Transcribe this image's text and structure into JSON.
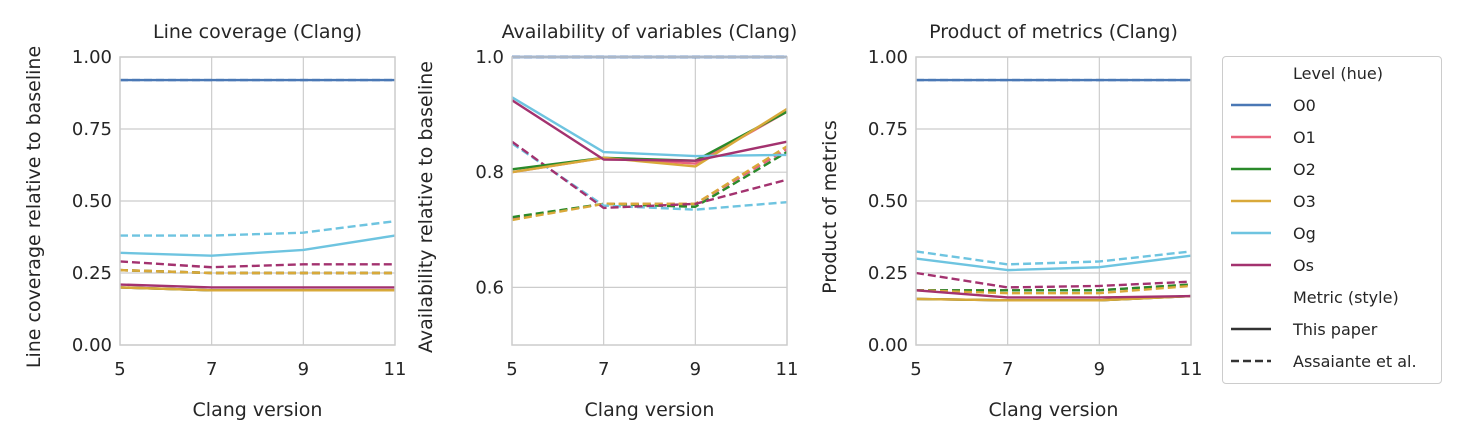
{
  "chart_data": [
    {
      "type": "line",
      "title": "Line coverage (Clang)",
      "xlabel": "Clang version",
      "ylabel": "Line coverage relative to baseline",
      "x": [
        5,
        7,
        9,
        11
      ],
      "xticks": [
        "5",
        "7",
        "9",
        "11"
      ],
      "yticks": [
        "0.00",
        "0.25",
        "0.50",
        "0.75",
        "1.00"
      ],
      "ylim": [
        0,
        1.0
      ],
      "grid": true,
      "series": [
        {
          "name": "O0",
          "style": "This paper",
          "values": [
            0.92,
            0.92,
            0.92,
            0.92
          ]
        },
        {
          "name": "O1",
          "style": "This paper",
          "values": [
            0.2,
            0.19,
            0.19,
            0.19
          ]
        },
        {
          "name": "O2",
          "style": "This paper",
          "values": [
            0.2,
            0.19,
            0.19,
            0.19
          ]
        },
        {
          "name": "O3",
          "style": "This paper",
          "values": [
            0.2,
            0.19,
            0.19,
            0.19
          ]
        },
        {
          "name": "Og",
          "style": "This paper",
          "values": [
            0.32,
            0.31,
            0.33,
            0.38
          ]
        },
        {
          "name": "Os",
          "style": "This paper",
          "values": [
            0.21,
            0.2,
            0.2,
            0.2
          ]
        },
        {
          "name": "O0",
          "style": "Assaiante et al.",
          "values": [
            0.92,
            0.92,
            0.92,
            0.92
          ]
        },
        {
          "name": "O1",
          "style": "Assaiante et al.",
          "values": [
            0.26,
            0.25,
            0.25,
            0.25
          ]
        },
        {
          "name": "O2",
          "style": "Assaiante et al.",
          "values": [
            0.26,
            0.25,
            0.25,
            0.25
          ]
        },
        {
          "name": "O3",
          "style": "Assaiante et al.",
          "values": [
            0.26,
            0.25,
            0.25,
            0.25
          ]
        },
        {
          "name": "Og",
          "style": "Assaiante et al.",
          "values": [
            0.38,
            0.38,
            0.39,
            0.43
          ]
        },
        {
          "name": "Os",
          "style": "Assaiante et al.",
          "values": [
            0.29,
            0.27,
            0.28,
            0.28
          ]
        }
      ]
    },
    {
      "type": "line",
      "title": "Availability of variables (Clang)",
      "xlabel": "Clang version",
      "ylabel": "Availability relative to baseline",
      "x": [
        5,
        7,
        9,
        11
      ],
      "xticks": [
        "5",
        "7",
        "9",
        "11"
      ],
      "yticks": [
        "0.6",
        "0.8",
        "1.0"
      ],
      "ylim": [
        0.5,
        1.0
      ],
      "grid": true,
      "series": [
        {
          "name": "O0",
          "style": "This paper",
          "values": [
            1.0,
            1.0,
            1.0,
            1.0
          ]
        },
        {
          "name": "O1",
          "style": "This paper",
          "values": [
            0.8,
            0.825,
            0.815,
            0.905
          ]
        },
        {
          "name": "O2",
          "style": "This paper",
          "values": [
            0.805,
            0.825,
            0.82,
            0.905
          ]
        },
        {
          "name": "O3",
          "style": "This paper",
          "values": [
            0.8,
            0.825,
            0.81,
            0.91
          ]
        },
        {
          "name": "Og",
          "style": "This paper",
          "values": [
            0.93,
            0.835,
            0.828,
            0.83
          ]
        },
        {
          "name": "Os",
          "style": "This paper",
          "values": [
            0.925,
            0.822,
            0.82,
            0.853
          ]
        },
        {
          "name": "O0",
          "style": "Assaiante et al.",
          "values": [
            1.0,
            1.0,
            1.0,
            1.0
          ]
        },
        {
          "name": "O1",
          "style": "Assaiante et al.",
          "values": [
            0.72,
            0.745,
            0.745,
            0.84
          ]
        },
        {
          "name": "O2",
          "style": "Assaiante et al.",
          "values": [
            0.722,
            0.745,
            0.74,
            0.835
          ]
        },
        {
          "name": "O3",
          "style": "Assaiante et al.",
          "values": [
            0.717,
            0.745,
            0.745,
            0.845
          ]
        },
        {
          "name": "Og",
          "style": "Assaiante et al.",
          "values": [
            0.85,
            0.742,
            0.735,
            0.748
          ]
        },
        {
          "name": "Os",
          "style": "Assaiante et al.",
          "values": [
            0.853,
            0.738,
            0.745,
            0.787
          ]
        }
      ]
    },
    {
      "type": "line",
      "title": "Product of metrics (Clang)",
      "xlabel": "Clang version",
      "ylabel": "Product of metrics",
      "x": [
        5,
        7,
        9,
        11
      ],
      "xticks": [
        "5",
        "7",
        "9",
        "11"
      ],
      "yticks": [
        "0.00",
        "0.25",
        "0.50",
        "0.75",
        "1.00"
      ],
      "ylim": [
        0,
        1.0
      ],
      "grid": true,
      "series": [
        {
          "name": "O0",
          "style": "This paper",
          "values": [
            0.92,
            0.92,
            0.92,
            0.92
          ]
        },
        {
          "name": "O1",
          "style": "This paper",
          "values": [
            0.16,
            0.155,
            0.155,
            0.17
          ]
        },
        {
          "name": "O2",
          "style": "This paper",
          "values": [
            0.16,
            0.155,
            0.155,
            0.17
          ]
        },
        {
          "name": "O3",
          "style": "This paper",
          "values": [
            0.16,
            0.155,
            0.155,
            0.17
          ]
        },
        {
          "name": "Og",
          "style": "This paper",
          "values": [
            0.3,
            0.26,
            0.27,
            0.31
          ]
        },
        {
          "name": "Os",
          "style": "This paper",
          "values": [
            0.19,
            0.165,
            0.165,
            0.17
          ]
        },
        {
          "name": "O0",
          "style": "Assaiante et al.",
          "values": [
            0.92,
            0.92,
            0.92,
            0.92
          ]
        },
        {
          "name": "O1",
          "style": "Assaiante et al.",
          "values": [
            0.19,
            0.19,
            0.19,
            0.21
          ]
        },
        {
          "name": "O2",
          "style": "Assaiante et al.",
          "values": [
            0.19,
            0.19,
            0.19,
            0.21
          ]
        },
        {
          "name": "O3",
          "style": "Assaiante et al.",
          "values": [
            0.19,
            0.18,
            0.18,
            0.205
          ]
        },
        {
          "name": "Og",
          "style": "Assaiante et al.",
          "values": [
            0.325,
            0.28,
            0.29,
            0.325
          ]
        },
        {
          "name": "Os",
          "style": "Assaiante et al.",
          "values": [
            0.25,
            0.2,
            0.205,
            0.22
          ]
        }
      ]
    }
  ],
  "colors": {
    "O0": "#4a78b5",
    "O1": "#e8637c",
    "O2": "#2a8a2a",
    "O3": "#d9a93a",
    "Og": "#6ec4e0",
    "Os": "#a3326f"
  },
  "legend": {
    "placement": "right",
    "hue_title": "Level (hue)",
    "hue_items": [
      "O0",
      "O1",
      "O2",
      "O3",
      "Og",
      "Os"
    ],
    "style_title": "Metric (style)",
    "style_items": [
      {
        "label": "This paper",
        "dash": "solid"
      },
      {
        "label": "Assaiante et al.",
        "dash": "dashed"
      }
    ]
  }
}
